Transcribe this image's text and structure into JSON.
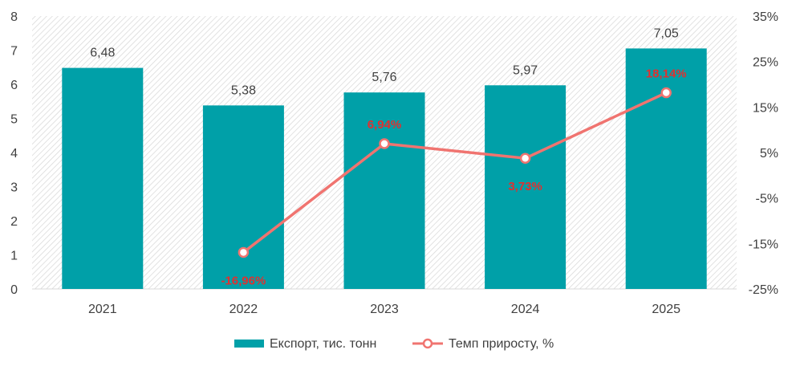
{
  "chart_data": {
    "type": "bar",
    "categories": [
      "2021",
      "2022",
      "2023",
      "2024",
      "2025"
    ],
    "series": [
      {
        "name": "Експорт, тис. тонн",
        "type": "bar",
        "axis": "left",
        "values": [
          6.48,
          5.38,
          5.76,
          5.97,
          7.05
        ],
        "labels": [
          "6,48",
          "5,38",
          "5,76",
          "5,97",
          "7,05"
        ],
        "color": "#00A0A8"
      },
      {
        "name": "Темп приросту, %",
        "type": "line",
        "axis": "right",
        "values": [
          null,
          -16.96,
          6.94,
          3.73,
          18.14
        ],
        "labels": [
          "",
          "-16,96%",
          "6,94%",
          "3,73%",
          "18,14%"
        ],
        "color": "#F07470",
        "label_color": "#E03030"
      }
    ],
    "y_left": {
      "min": 0,
      "max": 8,
      "ticks": [
        "0",
        "1",
        "2",
        "3",
        "4",
        "5",
        "6",
        "7",
        "8"
      ]
    },
    "y_right": {
      "min": -25,
      "max": 35,
      "ticks": [
        "-25%",
        "-15%",
        "-5%",
        "5%",
        "15%",
        "25%",
        "35%"
      ]
    },
    "grid": false,
    "legend": "bottom",
    "background_pattern": "diagonal-hatch"
  }
}
